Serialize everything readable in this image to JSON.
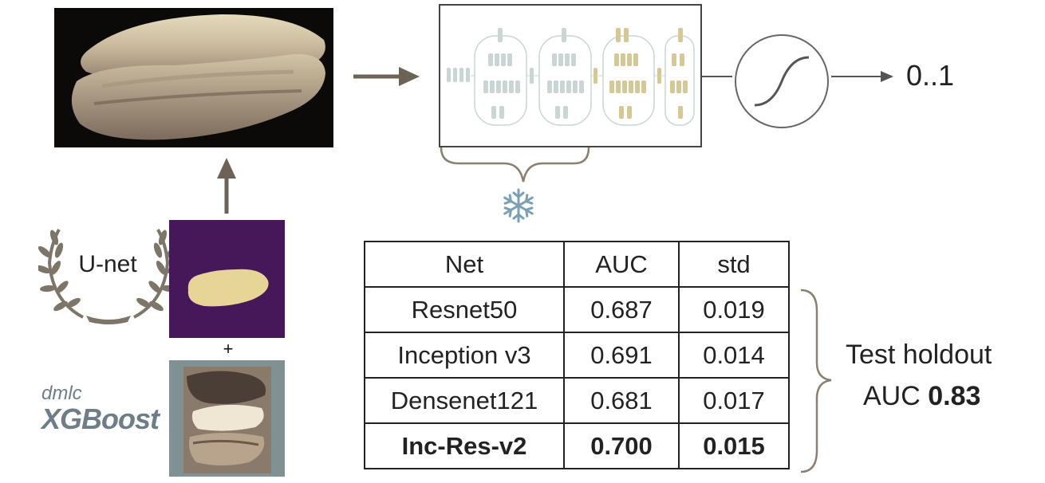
{
  "output": {
    "label": "0..1"
  },
  "segmentation": {
    "unet_label": "U-net",
    "plus": "+",
    "xgboost": {
      "prefix": "dmlc",
      "name": "XGBoost"
    }
  },
  "results": {
    "headers": [
      "Net",
      "AUC",
      "std"
    ],
    "rows": [
      {
        "net": "Resnet50",
        "auc": "0.687",
        "std": "0.019"
      },
      {
        "net": "Inception v3",
        "auc": "0.691",
        "std": "0.014"
      },
      {
        "net": "Densenet121",
        "auc": "0.681",
        "std": "0.017"
      },
      {
        "net": "Inc-Res-v2",
        "auc": "0.700",
        "std": "0.015",
        "best": true
      }
    ]
  },
  "holdout": {
    "line1": "Test holdout",
    "line2_prefix": "AUC",
    "line2_value": "0.83"
  },
  "colors": {
    "arrow": "#6b6356",
    "network_grey": "#c9d6d4",
    "network_gold": "#d6c896",
    "mask_background": "#46185a",
    "mask_shape": "#e6d596",
    "xgboost_logo": "#6d7e88"
  },
  "icons": {
    "frozen": "snowflake-icon",
    "activation": "sigmoid-icon",
    "unet_wreath": "laurel-wreath-icon"
  }
}
